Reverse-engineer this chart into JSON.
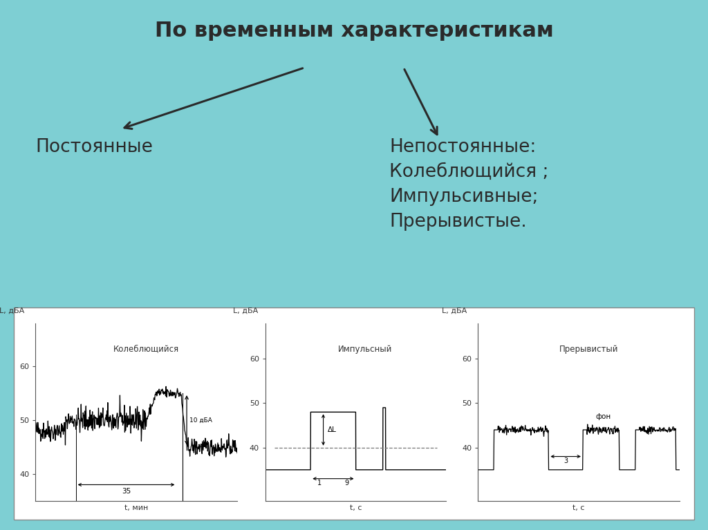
{
  "bg_color": "#7ecfd3",
  "title": "По временным характеристикам",
  "title_fontsize": 22,
  "title_bold": true,
  "left_label": "Постоянные",
  "right_label": "Непостоянные:\nКолеблющийся ;\nИмпульсивные;\nПрерывистые.",
  "label_fontsize": 19,
  "chart_titles": [
    "Колеблющийся",
    "Импульсный",
    "Прерывистый"
  ],
  "chart_ylabel": "L, дБА",
  "chart_xlabels": [
    "t, мин",
    "t, с",
    "t, с"
  ],
  "yticks": [
    40,
    50,
    60
  ],
  "text_color": "#2a2a2a",
  "chart_border_color": "#888888"
}
